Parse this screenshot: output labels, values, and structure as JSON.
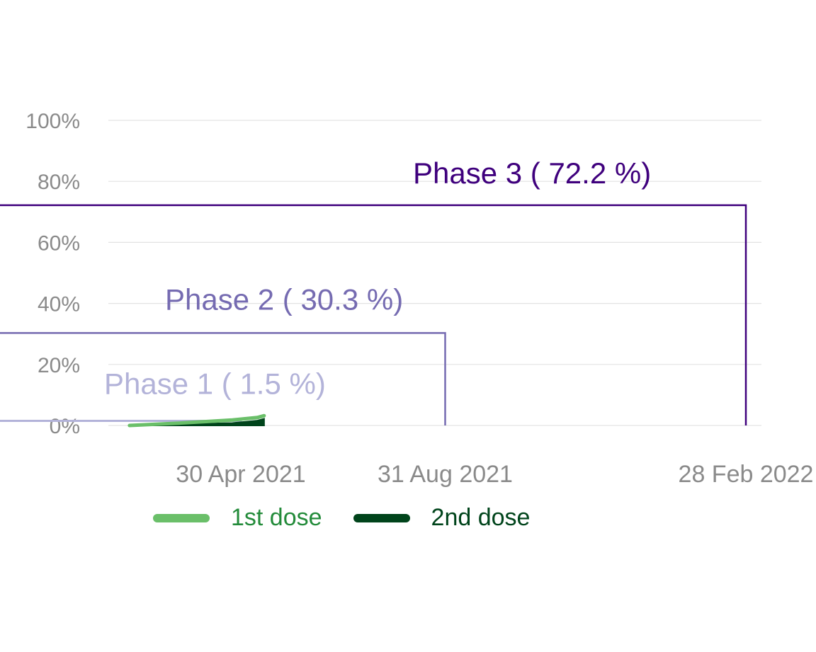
{
  "chart_data": {
    "type": "area",
    "title": "",
    "xlabel": "",
    "ylabel": "",
    "ylim": [
      0,
      100
    ],
    "y_ticks": [
      "0%",
      "20%",
      "40%",
      "60%",
      "80%",
      "100%"
    ],
    "y_tick_values": [
      0,
      20,
      40,
      60,
      80,
      100
    ],
    "x_ticks": [
      "30 Apr 2021",
      "31 Aug 2021",
      "28 Feb 2022"
    ],
    "x_tick_dates": [
      "2021-04-30",
      "2021-08-31",
      "2022-02-28"
    ],
    "grid": true,
    "legend_placement": "bottom",
    "series": [
      {
        "name": "1st dose",
        "color": "#6abf69",
        "label_color": "#238b3a",
        "x": [
          "2021-02-22",
          "2021-03-10",
          "2021-03-25",
          "2021-04-10",
          "2021-04-25",
          "2021-05-10",
          "2021-05-14"
        ],
        "values": [
          0.0,
          0.4,
          0.8,
          1.3,
          1.8,
          2.6,
          3.2
        ]
      },
      {
        "name": "2nd dose",
        "color": "#00441b",
        "label_color": "#00441b",
        "x": [
          "2021-02-22",
          "2021-03-10",
          "2021-03-25",
          "2021-04-10",
          "2021-04-25",
          "2021-05-10",
          "2021-05-14"
        ],
        "values": [
          0.0,
          0.2,
          0.4,
          0.6,
          0.8,
          1.6,
          2.2
        ]
      }
    ],
    "phases": [
      {
        "label": "Phase 1  ( 1.5 %)",
        "target": 1.5,
        "end": "2021-04-30",
        "color": "#b3b3d9"
      },
      {
        "label": "Phase 2  ( 30.3 %)",
        "target": 30.3,
        "end": "2021-08-31",
        "color": "#756bb1"
      },
      {
        "label": "Phase 3  ( 72.2 %)",
        "target": 72.2,
        "end": "2022-02-28",
        "color": "#3f007d"
      }
    ]
  }
}
